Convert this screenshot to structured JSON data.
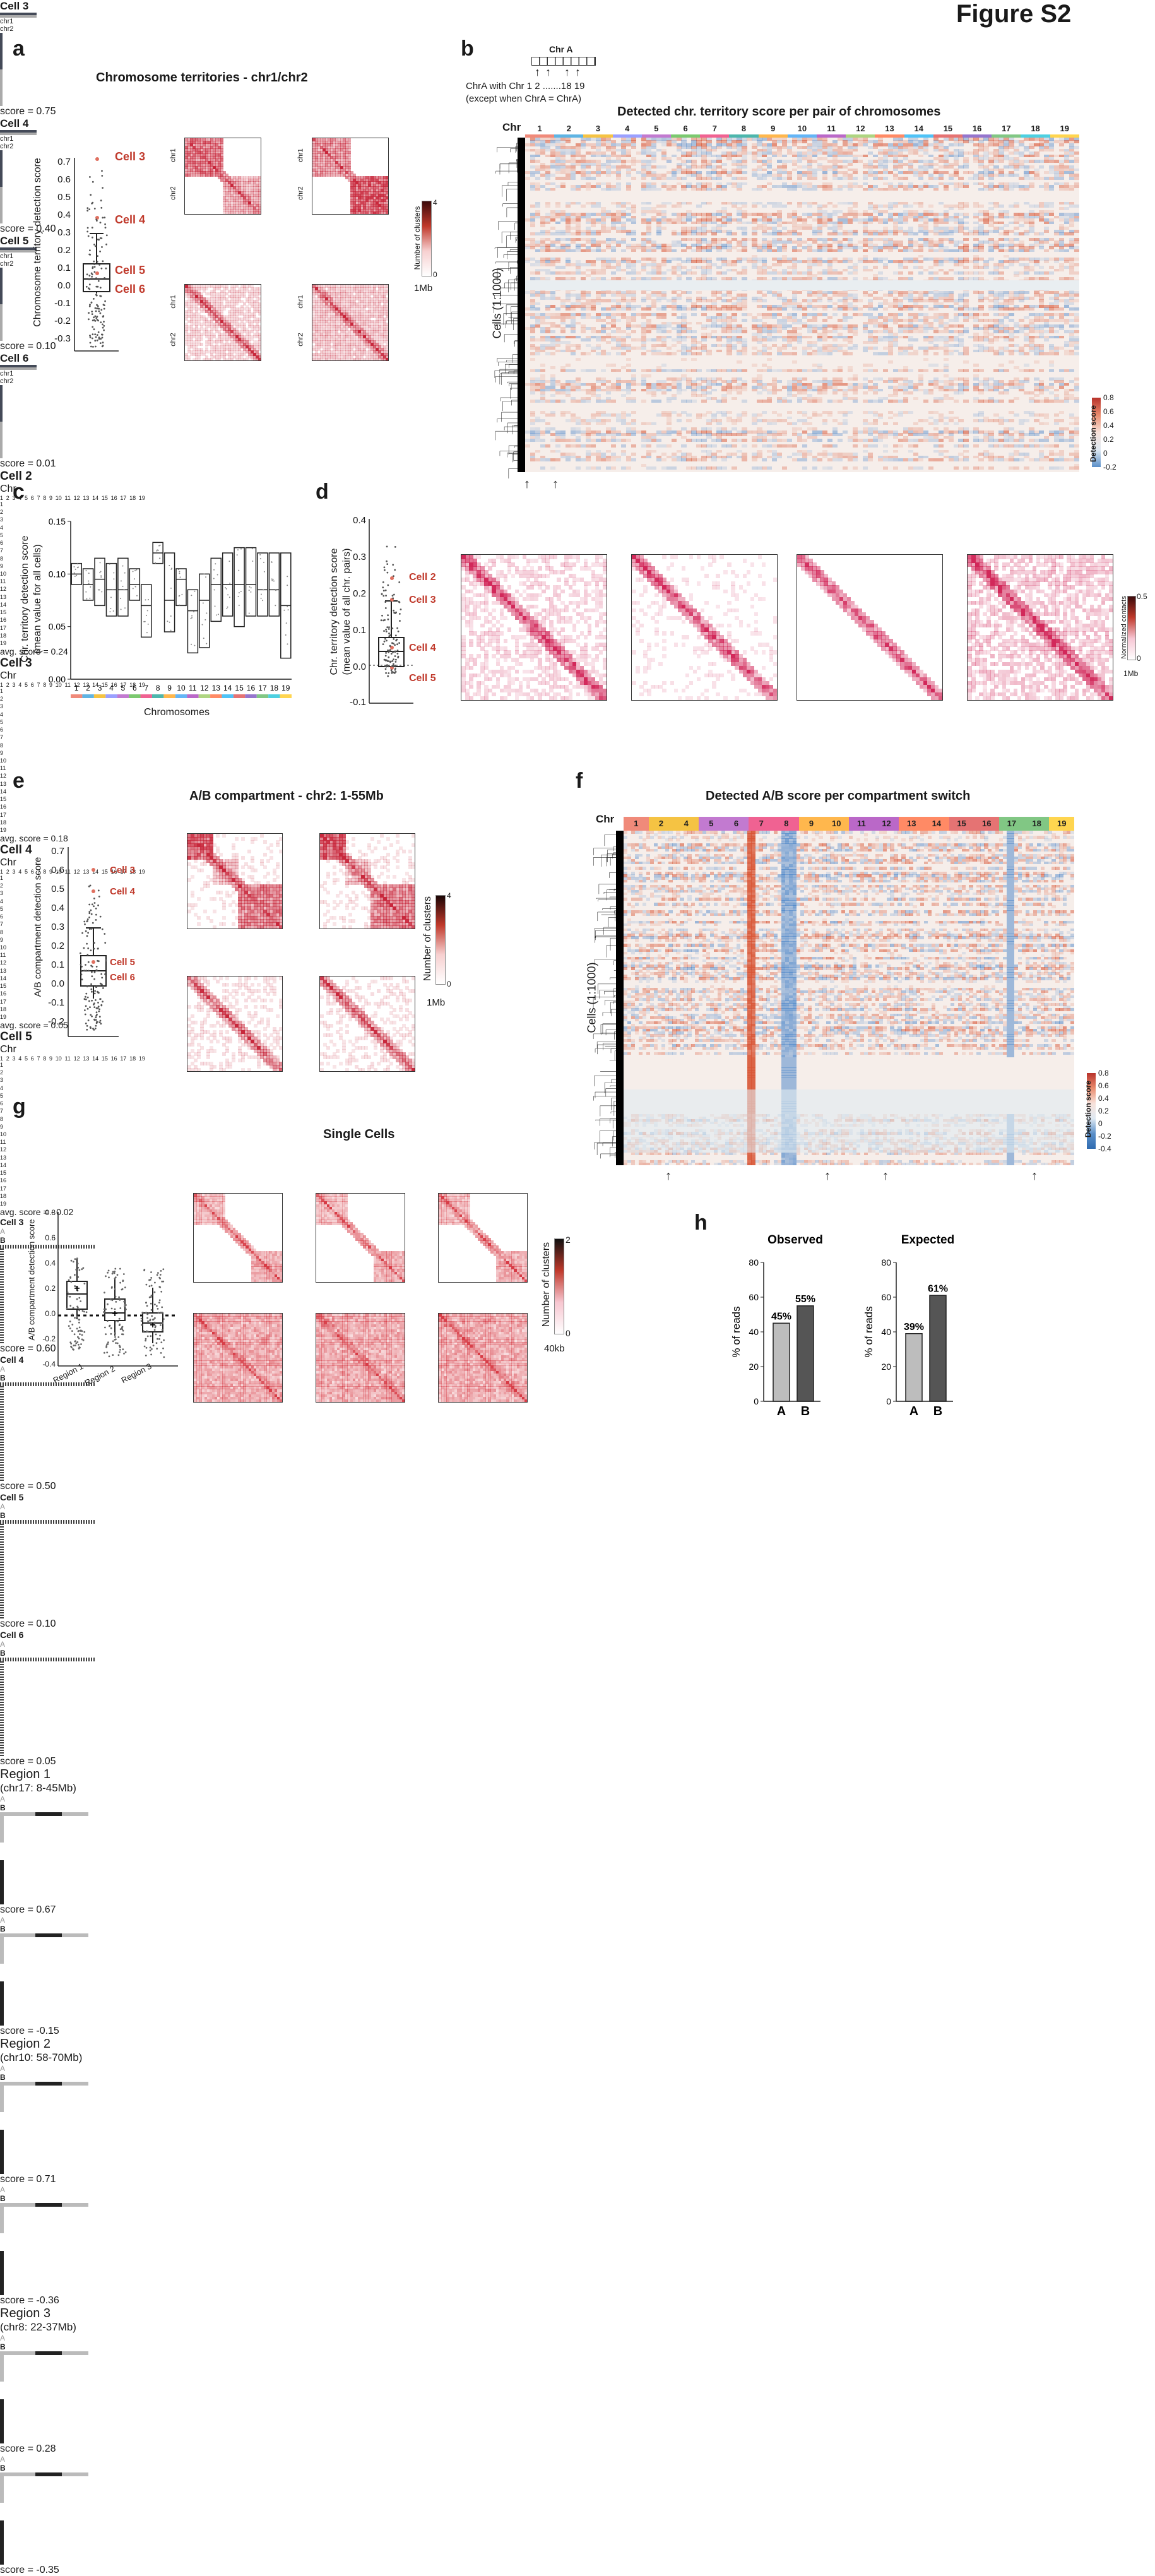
{
  "figure_title": "Figure S2",
  "panels": {
    "a": {
      "letter": "a",
      "title": "Chromosome territories - chr1/chr2",
      "ylabel": "Chromosome territory detection score",
      "yticks": [
        "0.7",
        "0.6",
        "0.5",
        "0.4",
        "0.3",
        "0.2",
        "0.1",
        "0.0",
        "-0.1",
        "-0.2",
        "-0.3"
      ],
      "cell_labels": [
        "Cell 3",
        "Cell 4",
        "Cell 5",
        "Cell 6"
      ],
      "maps": [
        {
          "name": "Cell 3",
          "score": "score = 0.75"
        },
        {
          "name": "Cell 4",
          "score": "score = 0.40"
        },
        {
          "name": "Cell 5",
          "score": "score = 0.10"
        },
        {
          "name": "Cell 6",
          "score": "score = 0.01"
        }
      ],
      "map_axis": {
        "top1": "chr1",
        "top2": "chr2",
        "left1": "chr1",
        "left2": "chr2"
      },
      "colorbar": {
        "label": "Number of clusters",
        "max": "4",
        "min": "0",
        "res": "1Mb"
      }
    },
    "b": {
      "letter": "b",
      "schematic_title": "Chr A",
      "schematic_labels": "1 2 .......18 19",
      "schematic_note1": "ChrA with Chr",
      "schematic_note2": "(except when ChrA = ChrA)",
      "title": "Detected chr. territory score per pair of chromosomes",
      "chr_label": "Chr",
      "ylabel": "Cells (1:1000)",
      "colorbar": {
        "label": "Detection score",
        "ticks": [
          "0.8",
          "0.6",
          "0.4",
          "0.2",
          "0",
          "-0.2"
        ]
      }
    },
    "c": {
      "letter": "c",
      "ylabel1": "Chr. territory detection score",
      "ylabel2": "(mean value for all cells)",
      "xlabel": "Chromosomes",
      "yticks": [
        "0.15",
        "0.10",
        "0.05",
        "0.00"
      ]
    },
    "d": {
      "letter": "d",
      "ylabel1": "Chr. territory detection score",
      "ylabel2": "(mean value of all chr. pairs)",
      "yticks": [
        "0.4",
        "0.3",
        "0.2",
        "0.1",
        "0.0",
        "-0.1"
      ],
      "cell_labels": [
        "Cell 2",
        "Cell 3",
        "Cell 4",
        "Cell 5"
      ],
      "maps": [
        {
          "name": "Cell 2",
          "score": "avg. score = 0.24"
        },
        {
          "name": "Cell 3",
          "score": "avg. score = 0.18"
        },
        {
          "name": "Cell 4",
          "score": "avg. score = 0.05"
        },
        {
          "name": "Cell 5",
          "score": "avg. score = - 0.02"
        }
      ],
      "chr_label": "Chr",
      "colorbar": {
        "label": "Normalized contacts",
        "max": "0.5",
        "min": "0",
        "res": "1Mb"
      }
    },
    "e": {
      "letter": "e",
      "title": "A/B compartment - chr2: 1-55Mb",
      "ylabel": "A/B compartment detection score",
      "yticks": [
        "0.7",
        "0.6",
        "0.5",
        "0.4",
        "0.3",
        "0.2",
        "0.1",
        "0.0",
        "-0.1",
        "-0.2"
      ],
      "cell_labels": [
        "Cell 3",
        "Cell 4",
        "Cell 5",
        "Cell 6"
      ],
      "maps": [
        {
          "name": "Cell 3",
          "score": "score = 0.60"
        },
        {
          "name": "Cell 4",
          "score": "score = 0.50"
        },
        {
          "name": "Cell 5",
          "score": "score = 0.10"
        },
        {
          "name": "Cell 6",
          "score": "score = 0.05"
        }
      ],
      "colorbar": {
        "label": "Number of clusters",
        "max": "4",
        "min": "0",
        "res": "1Mb"
      }
    },
    "f": {
      "letter": "f",
      "title": "Detected A/B score per compartment switch",
      "chr_label": "Chr",
      "ylabel": "Cells (1:1000)",
      "colorbar": {
        "label": "Detection score",
        "ticks": [
          "0.8",
          "0.6",
          "0.4",
          "0.2",
          "0",
          "-0.2",
          "-0.4"
        ]
      }
    },
    "g": {
      "letter": "g",
      "title": "Single Cells",
      "ylabel": "A/B compartment detection score",
      "yticks": [
        "0.8",
        "0.6",
        "0.4",
        "0.2",
        "0.0",
        "-0.2",
        "-0.4"
      ],
      "xticks": [
        "Region 1",
        "Region 2",
        "Region 3"
      ],
      "regions": [
        {
          "name": "Region 1",
          "coords": "(chr17: 8-45Mb)",
          "score_top": "score = 0.67",
          "score_bottom": "score = -0.15"
        },
        {
          "name": "Region 2",
          "coords": "(chr10: 58-70Mb)",
          "score_top": "score = 0.71",
          "score_bottom": "score = -0.36"
        },
        {
          "name": "Region 3",
          "coords": "(chr8: 22-37Mb)",
          "score_top": "score = 0.28",
          "score_bottom": "score = -0.35"
        }
      ],
      "colorbar": {
        "label": "Number of clusters",
        "max": "2",
        "min": "0",
        "res": "40kb"
      }
    },
    "h": {
      "letter": "h",
      "ylabel": "% of reads",
      "yticks": [
        "80",
        "60",
        "40",
        "20",
        "0"
      ]
    }
  },
  "chr_numbers": [
    "1",
    "2",
    "3",
    "4",
    "5",
    "6",
    "7",
    "8",
    "9",
    "10",
    "11",
    "12",
    "13",
    "14",
    "15",
    "16",
    "17",
    "18",
    "19"
  ],
  "chr_numbers_f": [
    "1",
    "2",
    "4",
    "5",
    "6",
    "7",
    "8",
    "9",
    "10",
    "11",
    "12",
    "13",
    "14",
    "15",
    "16",
    "17",
    "18",
    "19"
  ],
  "ab_letters": {
    "a": "A",
    "b": "B"
  },
  "chart_data": [
    {
      "type": "bar",
      "panel": "c",
      "title": "",
      "xlabel": "Chromosomes",
      "ylabel": "Chr. territory detection score (mean value for all cells)",
      "categories": [
        "1",
        "2",
        "3",
        "4",
        "5",
        "6",
        "7",
        "8",
        "9",
        "10",
        "11",
        "12",
        "13",
        "14",
        "15",
        "16",
        "17",
        "18",
        "19"
      ],
      "series": [
        {
          "name": "max",
          "values": [
            0.11,
            0.105,
            0.115,
            0.11,
            0.115,
            0.105,
            0.09,
            0.13,
            0.12,
            0.105,
            0.085,
            0.1,
            0.115,
            0.12,
            0.125,
            0.125,
            0.12,
            0.12,
            0.12
          ]
        },
        {
          "name": "min",
          "values": [
            0.09,
            0.075,
            0.07,
            0.06,
            0.06,
            0.075,
            0.04,
            0.11,
            0.045,
            0.07,
            0.025,
            0.03,
            0.055,
            0.06,
            0.05,
            0.06,
            0.06,
            0.06,
            0.02
          ]
        },
        {
          "name": "mean",
          "values": [
            0.1,
            0.09,
            0.095,
            0.085,
            0.085,
            0.09,
            0.07,
            0.12,
            0.075,
            0.095,
            0.065,
            0.075,
            0.09,
            0.09,
            0.09,
            0.09,
            0.085,
            0.085,
            0.07
          ]
        }
      ],
      "ylim": [
        0,
        0.15
      ]
    },
    {
      "type": "bar",
      "panel": "h-observed",
      "title": "Observed",
      "xlabel": "",
      "ylabel": "% of reads",
      "categories": [
        "A",
        "B"
      ],
      "values": [
        45,
        55
      ],
      "labels": [
        "45%",
        "55%"
      ],
      "ylim": [
        0,
        80
      ]
    },
    {
      "type": "bar",
      "panel": "h-expected",
      "title": "Expected",
      "xlabel": "",
      "ylabel": "% of reads",
      "categories": [
        "A",
        "B"
      ],
      "values": [
        39,
        61
      ],
      "labels": [
        "39%",
        "61%"
      ],
      "ylim": [
        0,
        80
      ]
    }
  ]
}
